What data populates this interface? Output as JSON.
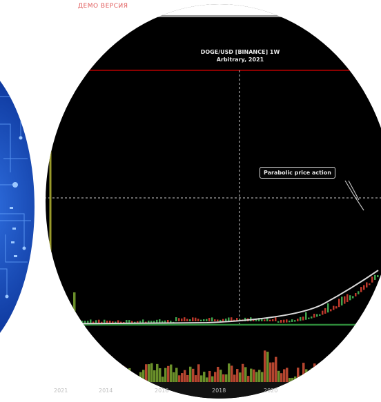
{
  "page": {
    "top_caption": "ДЕМО ВЕРСИЯ"
  },
  "chart_data": {
    "type": "candlestick",
    "title": "DOGE/USD [BINANCE] 1W",
    "subtitle": "Arbitrary, 2021",
    "annotation": "Parabolic price action",
    "x_tick_labels": [
      "2014",
      "2016",
      "2018",
      "2020",
      "2021"
    ],
    "highlighted_tick": "",
    "colors": {
      "background": "#000000",
      "up": "#3fa34d",
      "down": "#c0392b",
      "volume_up": "#6a8f2a",
      "volume_down": "#b5452f",
      "resistance": "#8b0000",
      "support": "#2e8b3a",
      "trend_curve": "#d8d8d8",
      "vertical_marker": "#9a9a2a"
    },
    "grid": "dashed crosshair",
    "legend": "none"
  }
}
